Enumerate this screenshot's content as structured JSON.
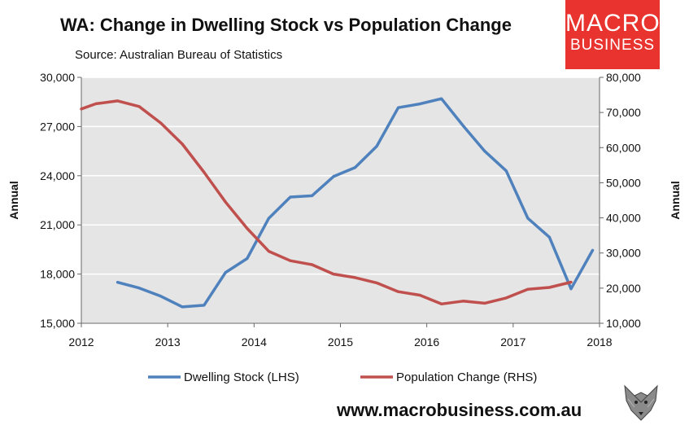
{
  "header": {
    "title": "WA: Change in Dwelling Stock vs Population Change",
    "subtitle": "Source: Australian Bureau of Statistics"
  },
  "logo": {
    "line1": "MACRO",
    "line2": "BUSINESS"
  },
  "footer": {
    "website": "www.macrobusiness.com.au",
    "mascot_icon": "wolf-icon"
  },
  "colors": {
    "dwelling": "#4f81bd",
    "population": "#c0504d",
    "plot_bg": "#e5e5e5",
    "brand": "#e8332e"
  },
  "chart_data": {
    "type": "line",
    "title": "WA: Change in Dwelling Stock vs Population Change",
    "xlabel": "",
    "ylabel": "Annual",
    "y2label": "Annual",
    "xlim": [
      2012,
      2018
    ],
    "ylim": [
      15000,
      30000
    ],
    "y2lim": [
      10000,
      80000
    ],
    "x_ticks": [
      "2012",
      "2013",
      "2014",
      "2015",
      "2016",
      "2017",
      "2018"
    ],
    "y_ticks": [
      "15,000",
      "18,000",
      "21,000",
      "24,000",
      "27,000",
      "30,000"
    ],
    "y2_ticks": [
      "10,000",
      "20,000",
      "30,000",
      "40,000",
      "50,000",
      "60,000",
      "70,000",
      "80,000"
    ],
    "legend_position": "bottom",
    "series": [
      {
        "name": "Dwelling Stock (LHS)",
        "axis": "left",
        "x": [
          2012.42,
          2012.67,
          2012.92,
          2013.17,
          2013.42,
          2013.67,
          2013.92,
          2014.17,
          2014.42,
          2014.67,
          2014.92,
          2015.17,
          2015.42,
          2015.67,
          2015.92,
          2016.17,
          2016.42,
          2016.67,
          2016.92,
          2017.17,
          2017.42,
          2017.67,
          2017.92
        ],
        "values": [
          17500,
          17150,
          16650,
          16000,
          16100,
          18100,
          18950,
          21400,
          22700,
          22780,
          23950,
          24500,
          25800,
          28150,
          28380,
          28700,
          27050,
          25500,
          24300,
          21400,
          20250,
          17100,
          19450
        ]
      },
      {
        "name": "Population Change (RHS)",
        "axis": "right",
        "x": [
          2012.0,
          2012.17,
          2012.42,
          2012.67,
          2012.92,
          2013.17,
          2013.42,
          2013.67,
          2013.92,
          2014.17,
          2014.42,
          2014.67,
          2014.92,
          2015.17,
          2015.42,
          2015.67,
          2015.92,
          2016.17,
          2016.42,
          2016.67,
          2016.92,
          2017.17,
          2017.42,
          2017.67
        ],
        "values": [
          71000,
          72500,
          73300,
          71700,
          67000,
          61000,
          53000,
          44500,
          37000,
          30500,
          27800,
          26700,
          24000,
          23000,
          21500,
          19000,
          18000,
          15500,
          16300,
          15700,
          17200,
          19700,
          20200,
          21700
        ]
      }
    ]
  }
}
